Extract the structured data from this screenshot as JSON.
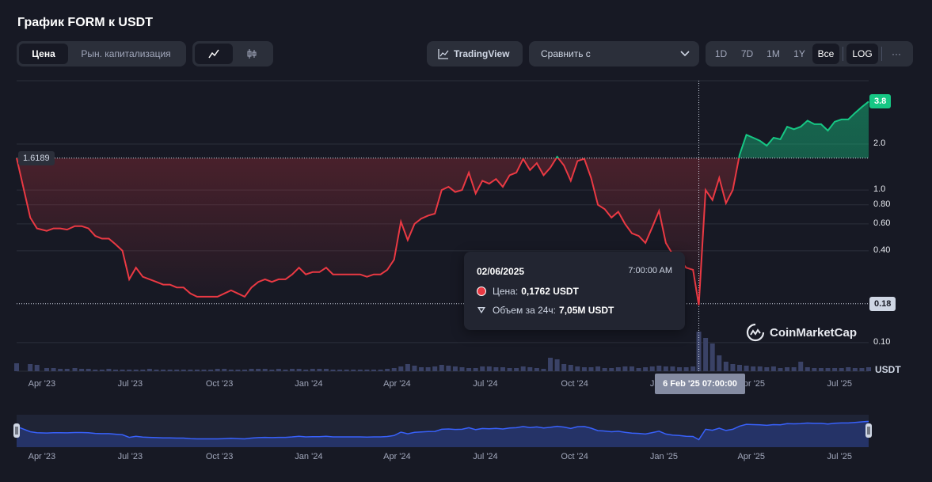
{
  "header": {
    "title": "График FORM к USDT"
  },
  "toolbar": {
    "price_label": "Цена",
    "marketcap_label": "Рын. капитализация",
    "tradingview_label": "TradingView",
    "compare_placeholder": "Сравнить с",
    "ranges": [
      "1D",
      "7D",
      "1M",
      "1Y",
      "Все"
    ],
    "active_range": "Все",
    "log_label": "LOG",
    "more_label": "···"
  },
  "tooltip": {
    "date": "02/06/2025",
    "time": "7:00:00 AM",
    "price_label": "Цена:",
    "price_value": "0,1762 USDT",
    "volume_label": "Объем за 24ч:",
    "volume_value": "7,05M USDT"
  },
  "crosshair_label": "6 Feb '25 07:00:00",
  "watermark": "CoinMarketCap",
  "colors": {
    "up": "#16c784",
    "down": "#ea3943",
    "volume": "#3a4266",
    "navigator": "#3861fb",
    "background": "#171924"
  },
  "chart_data": {
    "type": "line",
    "scale": "log",
    "ylabel": "USDT",
    "baseline": 1.6189,
    "baseline_label": "1.6189",
    "current_value": 3.8,
    "current_label": "3.8",
    "hover_value": 0.18,
    "hover_label": "0.18",
    "y_ticks": [
      0.1,
      0.4,
      0.6,
      0.8,
      1.0,
      2.0
    ],
    "y_tick_labels": [
      "0.10",
      "0.40",
      "0.60",
      "0.80",
      "1.0",
      "2.0"
    ],
    "x_tick_labels": [
      "Apr '23",
      "Jul '23",
      "Oct '23",
      "Jan '24",
      "Apr '24",
      "Jul '24",
      "Oct '24",
      "Jan '25",
      "Apr '25",
      "Jul '25"
    ],
    "x_tick_dates": [
      "2023-04-01",
      "2023-07-01",
      "2023-10-01",
      "2024-01-01",
      "2024-04-01",
      "2024-07-01",
      "2024-10-01",
      "2025-01-01",
      "2025-04-01",
      "2025-07-01"
    ],
    "series": [
      {
        "x": [
          "2023-03-06",
          "2023-03-20",
          "2023-03-27",
          "2023-04-06",
          "2023-04-13",
          "2023-04-20",
          "2023-04-27",
          "2023-05-05",
          "2023-05-12",
          "2023-05-19",
          "2023-05-26",
          "2023-06-02",
          "2023-06-09",
          "2023-06-16",
          "2023-06-23",
          "2023-06-30",
          "2023-07-07",
          "2023-07-14",
          "2023-07-21",
          "2023-07-28",
          "2023-08-04",
          "2023-08-11",
          "2023-08-18",
          "2023-08-25",
          "2023-09-01",
          "2023-09-08",
          "2023-09-15",
          "2023-09-22",
          "2023-09-29",
          "2023-10-06",
          "2023-10-13",
          "2023-10-20",
          "2023-10-27",
          "2023-11-03",
          "2023-11-10",
          "2023-11-17",
          "2023-11-24",
          "2023-12-01",
          "2023-12-08",
          "2023-12-15",
          "2023-12-22",
          "2023-12-29",
          "2024-01-05",
          "2024-01-12",
          "2024-01-19",
          "2024-01-26",
          "2024-02-02",
          "2024-02-09",
          "2024-02-16",
          "2024-02-23",
          "2024-03-01",
          "2024-03-08",
          "2024-03-15",
          "2024-03-22",
          "2024-03-29",
          "2024-04-05",
          "2024-04-12",
          "2024-04-19",
          "2024-04-26",
          "2024-05-03",
          "2024-05-10",
          "2024-05-17",
          "2024-05-24",
          "2024-05-31",
          "2024-06-07",
          "2024-06-14",
          "2024-06-21",
          "2024-06-28",
          "2024-07-05",
          "2024-07-12",
          "2024-07-19",
          "2024-07-26",
          "2024-08-02",
          "2024-08-09",
          "2024-08-16",
          "2024-08-23",
          "2024-08-30",
          "2024-09-06",
          "2024-09-13",
          "2024-09-20",
          "2024-09-27",
          "2024-10-04",
          "2024-10-11",
          "2024-10-18",
          "2024-10-25",
          "2024-11-01",
          "2024-11-08",
          "2024-11-15",
          "2024-11-22",
          "2024-11-29",
          "2024-12-06",
          "2024-12-13",
          "2024-12-20",
          "2024-12-27",
          "2025-01-03",
          "2025-01-10",
          "2025-01-17",
          "2025-01-24",
          "2025-01-31",
          "2025-02-06",
          "2025-02-13",
          "2025-02-20",
          "2025-02-27",
          "2025-03-06",
          "2025-03-13",
          "2025-03-20",
          "2025-03-27",
          "2025-04-03",
          "2025-04-10",
          "2025-04-17",
          "2025-04-24",
          "2025-05-01",
          "2025-05-08",
          "2025-05-15",
          "2025-05-22",
          "2025-05-29",
          "2025-06-05",
          "2025-06-12",
          "2025-06-19",
          "2025-06-26",
          "2025-07-03",
          "2025-07-10",
          "2025-07-17",
          "2025-07-24",
          "2025-07-31"
        ],
        "y": [
          1.62,
          0.66,
          0.56,
          0.54,
          0.56,
          0.56,
          0.55,
          0.58,
          0.58,
          0.56,
          0.5,
          0.48,
          0.48,
          0.44,
          0.4,
          0.26,
          0.31,
          0.27,
          0.26,
          0.25,
          0.24,
          0.24,
          0.23,
          0.23,
          0.21,
          0.2,
          0.2,
          0.2,
          0.2,
          0.21,
          0.22,
          0.21,
          0.2,
          0.23,
          0.25,
          0.26,
          0.25,
          0.26,
          0.26,
          0.28,
          0.31,
          0.28,
          0.29,
          0.29,
          0.31,
          0.28,
          0.28,
          0.28,
          0.28,
          0.28,
          0.27,
          0.28,
          0.28,
          0.3,
          0.35,
          0.62,
          0.47,
          0.6,
          0.65,
          0.68,
          0.7,
          1.0,
          1.05,
          0.97,
          1.0,
          1.3,
          0.95,
          1.15,
          1.1,
          1.18,
          1.05,
          1.25,
          1.3,
          1.6,
          1.35,
          1.5,
          1.25,
          1.4,
          1.65,
          1.45,
          1.15,
          1.55,
          1.6,
          1.2,
          0.8,
          0.75,
          0.66,
          0.72,
          0.6,
          0.52,
          0.5,
          0.45,
          0.57,
          0.73,
          0.45,
          0.38,
          0.35,
          0.31,
          0.3,
          0.176,
          1.0,
          0.86,
          1.2,
          0.82,
          1.0,
          1.7,
          2.3,
          2.2,
          2.1,
          1.95,
          2.2,
          2.15,
          2.6,
          2.5,
          2.6,
          2.85,
          2.7,
          2.7,
          2.45,
          2.8,
          2.9,
          2.9,
          3.2,
          3.5,
          3.8
        ]
      }
    ]
  }
}
